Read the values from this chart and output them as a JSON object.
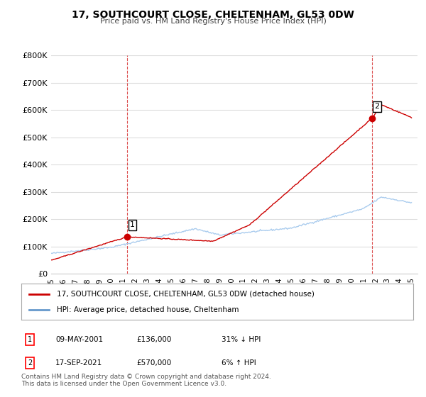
{
  "title": "17, SOUTHCOURT CLOSE, CHELTENHAM, GL53 0DW",
  "subtitle": "Price paid vs. HM Land Registry's House Price Index (HPI)",
  "legend_label_red": "17, SOUTHCOURT CLOSE, CHELTENHAM, GL53 0DW (detached house)",
  "legend_label_blue": "HPI: Average price, detached house, Cheltenham",
  "transaction1_label": "1",
  "transaction1_date": "09-MAY-2001",
  "transaction1_price": "£136,000",
  "transaction1_hpi": "31% ↓ HPI",
  "transaction2_label": "2",
  "transaction2_date": "17-SEP-2021",
  "transaction2_price": "£570,000",
  "transaction2_hpi": "6% ↑ HPI",
  "footnote": "Contains HM Land Registry data © Crown copyright and database right 2024.\nThis data is licensed under the Open Government Licence v3.0.",
  "ylim": [
    0,
    800000
  ],
  "yticks": [
    0,
    100000,
    200000,
    300000,
    400000,
    500000,
    600000,
    700000,
    800000
  ],
  "color_red": "#cc0000",
  "color_blue": "#6699cc",
  "color_blue_light": "#aaccee",
  "background_color": "#ffffff",
  "grid_color": "#dddddd",
  "transaction1_year": 2001.35,
  "transaction1_price_val": 136000,
  "transaction2_year": 2021.71,
  "transaction2_price_val": 570000
}
